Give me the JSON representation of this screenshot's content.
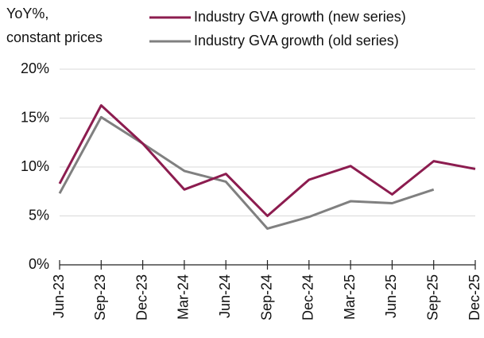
{
  "chart_data": {
    "type": "line",
    "y_label": [
      "YoY%,",
      "constant prices"
    ],
    "categories": [
      "Jun-23",
      "Sep-23",
      "Dec-23",
      "Mar-24",
      "Jun-24",
      "Sep-24",
      "Dec-24",
      "Mar-25",
      "Jun-25",
      "Sep-25",
      "Dec-25"
    ],
    "series": [
      {
        "name": "Industry GVA growth (new series)",
        "color": "#8c1c4f",
        "values": [
          8.3,
          16.3,
          12.4,
          7.7,
          9.3,
          5.0,
          8.7,
          10.1,
          7.2,
          10.6,
          9.8
        ]
      },
      {
        "name": "Industry GVA growth (old series)",
        "color": "#808080",
        "values": [
          7.3,
          15.1,
          12.4,
          9.6,
          8.5,
          3.7,
          4.9,
          6.5,
          6.3,
          7.7,
          null
        ]
      }
    ],
    "ylim": [
      0,
      20
    ],
    "yticks": [
      {
        "value": 0,
        "label": "0%"
      },
      {
        "value": 5,
        "label": "5%"
      },
      {
        "value": 10,
        "label": "10%"
      },
      {
        "value": 15,
        "label": "15%"
      },
      {
        "value": 20,
        "label": "20%"
      }
    ],
    "grid": true
  }
}
